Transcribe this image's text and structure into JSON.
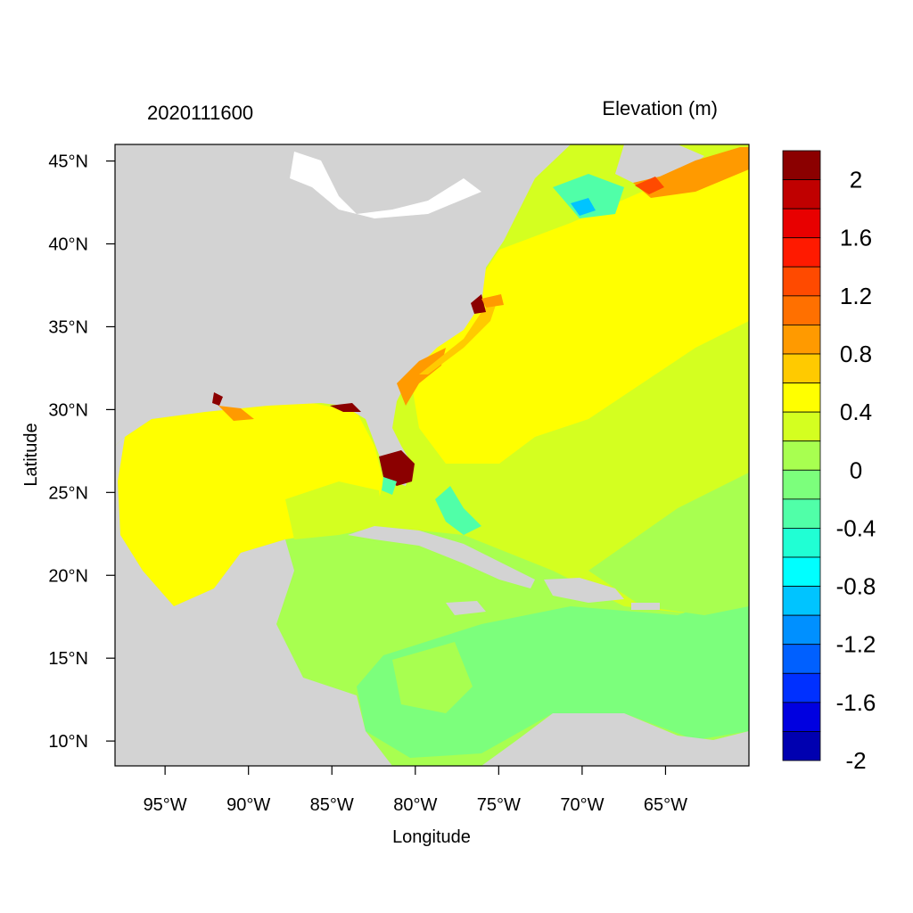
{
  "header": {
    "left_string": "2020111600",
    "right_string": "Elevation (m)"
  },
  "axes": {
    "xlabel": "Longitude",
    "ylabel": "Latitude",
    "lon_range": [
      -98,
      -60
    ],
    "lat_range": [
      8.5,
      46
    ],
    "x_ticks": [
      {
        "value": -95,
        "label": "95°W"
      },
      {
        "value": -90,
        "label": "90°W"
      },
      {
        "value": -85,
        "label": "85°W"
      },
      {
        "value": -80,
        "label": "80°W"
      },
      {
        "value": -75,
        "label": "75°W"
      },
      {
        "value": -70,
        "label": "70°W"
      },
      {
        "value": -65,
        "label": "65°W"
      }
    ],
    "y_ticks": [
      {
        "value": 45,
        "label": "45°N"
      },
      {
        "value": 40,
        "label": "40°N"
      },
      {
        "value": 35,
        "label": "35°N"
      },
      {
        "value": 30,
        "label": "30°N"
      },
      {
        "value": 25,
        "label": "25°N"
      },
      {
        "value": 20,
        "label": "20°N"
      },
      {
        "value": 15,
        "label": "15°N"
      },
      {
        "value": 10,
        "label": "10°N"
      }
    ]
  },
  "colorbar": {
    "colors_top_to_bottom": [
      "#8b0000",
      "#c00000",
      "#e80000",
      "#ff1a00",
      "#ff4a00",
      "#ff7000",
      "#ff9a00",
      "#ffca00",
      "#ffff00",
      "#d4ff20",
      "#a8ff50",
      "#7cff7c",
      "#50ffa8",
      "#20ffd4",
      "#00ffff",
      "#00c4ff",
      "#0090ff",
      "#0060ff",
      "#0030ff",
      "#0000e0",
      "#0000b0"
    ],
    "labels": [
      {
        "index": 1,
        "text": "2"
      },
      {
        "index": 3,
        "text": "1.6"
      },
      {
        "index": 5,
        "text": "1.2"
      },
      {
        "index": 7,
        "text": "0.8"
      },
      {
        "index": 9,
        "text": "0.4"
      },
      {
        "index": 11,
        "text": "0"
      },
      {
        "index": 13,
        "text": "-0.4"
      },
      {
        "index": 15,
        "text": "-0.8"
      },
      {
        "index": 17,
        "text": "-1.2"
      },
      {
        "index": 19,
        "text": "-1.6"
      },
      {
        "index": 21,
        "text": "-2"
      }
    ]
  },
  "map_colors": {
    "land": "#d3d3d3",
    "gulf": "#ffff00",
    "atlantic": "#ffff00",
    "atlantic_outer": "#d4ff20",
    "caribbean": "#a8ff50",
    "caribbean_south": "#7cff7c",
    "surge_high": "#8b0000",
    "surge_orange": "#ff9a00",
    "surge_amber": "#ffca00",
    "cyan": "#50ffa8",
    "blue": "#00c4ff"
  }
}
